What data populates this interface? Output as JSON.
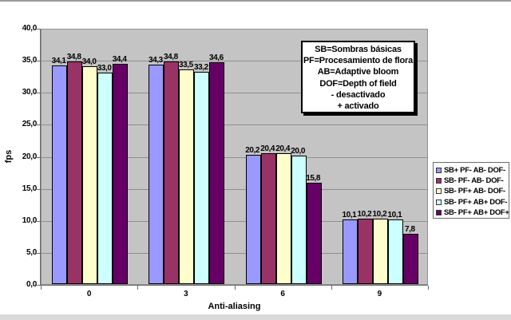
{
  "frame": {
    "top_strip_color": "#9c9c9c",
    "bottom_strip_color": "#d9d9d9"
  },
  "chart_data": {
    "type": "bar",
    "title": "",
    "xlabel": "Anti-aliasing",
    "ylabel": "fps",
    "categories": [
      "0",
      "3",
      "6",
      "9"
    ],
    "series": [
      {
        "name": "SB+ PF- AB- DOF-",
        "color": "#9999FF",
        "values": [
          34.1,
          34.3,
          20.2,
          10.1
        ],
        "labels": [
          "34,1",
          "34,3",
          "20,2",
          "10,1"
        ]
      },
      {
        "name": "SB- PF- AB- DOF-",
        "color": "#993366",
        "values": [
          34.8,
          34.8,
          20.4,
          10.2
        ],
        "labels": [
          "34,8",
          "34,8",
          "20,4",
          "10,2"
        ]
      },
      {
        "name": "SB- PF+ AB- DOF-",
        "color": "#FFFFCC",
        "values": [
          34.0,
          33.5,
          20.4,
          10.2
        ],
        "labels": [
          "34,0",
          "33,5",
          "20,4",
          "10,2"
        ]
      },
      {
        "name": "SB- PF+ AB+ DOF-",
        "color": "#CCFFFF",
        "values": [
          33.0,
          33.2,
          20.0,
          10.1
        ],
        "labels": [
          "33,0",
          "33,2",
          "20,0",
          "10,1"
        ]
      },
      {
        "name": "SB- PF+ AB+ DOF+",
        "color": "#660066",
        "values": [
          34.4,
          34.6,
          15.8,
          7.8
        ],
        "labels": [
          "34,4",
          "34,6",
          "15,8",
          "7,8"
        ]
      }
    ],
    "ylim": [
      0,
      40
    ],
    "ytick_step": 5,
    "ytick_labels": [
      "0,0",
      "5,0",
      "10,0",
      "15,0",
      "20,0",
      "25,0",
      "30,0",
      "35,0",
      "40,0"
    ],
    "grid": true,
    "legend_position": "right",
    "plot_bg": "#C4C4C4",
    "gridline_color": "#8f8f8f",
    "axis_color": "#6b6b6b",
    "bar_border_color": "#000000"
  },
  "annotation_box": {
    "lines": [
      "SB=Sombras básicas",
      "PF=Procesamiento de flora",
      "AB=Adaptive bloom",
      "DOF=Depth of field",
      "- desactivado",
      "+ activado"
    ]
  }
}
